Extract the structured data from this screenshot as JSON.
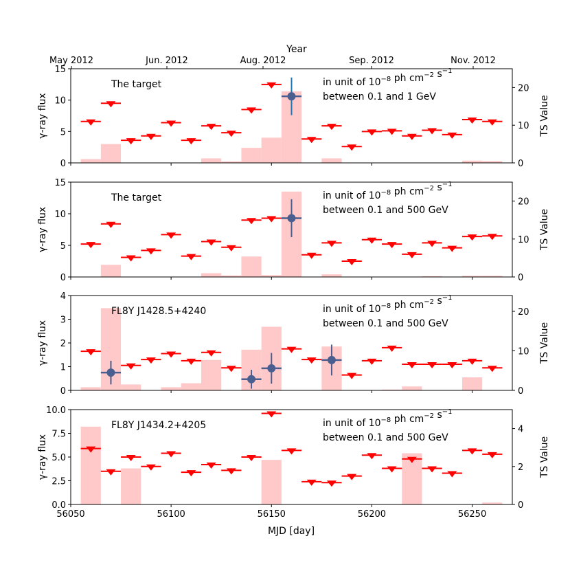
{
  "figure": {
    "top_axis_title": "Year",
    "top_axis_months": [
      "May 2012",
      "Jun. 2012",
      "Aug. 2012",
      "Sep. 2012",
      "Nov. 2012"
    ],
    "xlabel": "MJD [day]"
  },
  "chart_data": [
    {
      "type": "scatter",
      "panel": 1,
      "label": "The target",
      "unit_line1": "in unit of 10−8 ph cm−2 s−1",
      "unit_base": "in unit of 10",
      "unit_exp1": "−8",
      "unit_mid": " ph cm",
      "unit_exp2": "−2",
      "unit_mid2": " s",
      "unit_exp3": "−1",
      "energy_range": "between 0.1 and 1 GeV",
      "ylabel": "γ-ray flux",
      "y2label": "TS Value",
      "xlim": [
        56050,
        56270
      ],
      "ylim": [
        0,
        15
      ],
      "y2lim": [
        0,
        25
      ],
      "yticks": [
        "0",
        "5",
        "10",
        "15"
      ],
      "y2ticks": [
        "0",
        "10",
        "20"
      ],
      "bin_centers": [
        56060,
        56070,
        56080,
        56090,
        56100,
        56110,
        56120,
        56130,
        56140,
        56150,
        56160,
        56170,
        56180,
        56190,
        56200,
        56210,
        56220,
        56230,
        56240,
        56250,
        56260
      ],
      "upper_limits": [
        6.6,
        9.5,
        3.6,
        4.3,
        6.4,
        3.6,
        5.9,
        4.8,
        8.5,
        12.5,
        null,
        3.8,
        5.9,
        2.6,
        5.0,
        5.1,
        4.3,
        5.2,
        4.5,
        6.9,
        6.6
      ],
      "detections": [
        {
          "x": 56160,
          "y": 10.6,
          "yerr": 3.0,
          "xerr": 5
        }
      ],
      "ts_values": [
        1.0,
        5.0,
        0,
        0,
        0,
        0,
        1.2,
        0.4,
        4.0,
        6.7,
        19.0,
        0,
        1.2,
        0,
        0,
        0,
        0,
        0,
        0,
        0.6,
        0.5
      ]
    },
    {
      "type": "scatter",
      "panel": 2,
      "label": "The target",
      "unit_line1": "in unit of 10−8 ph cm−2 s−1",
      "unit_base": "in unit of 10",
      "unit_exp1": "−8",
      "unit_mid": " ph cm",
      "unit_exp2": "−2",
      "unit_mid2": " s",
      "unit_exp3": "−1",
      "energy_range": "between 0.1 and 500 GeV",
      "ylabel": "γ-ray flux",
      "y2label": "TS Value",
      "xlim": [
        56050,
        56270
      ],
      "ylim": [
        0,
        15
      ],
      "y2lim": [
        0,
        25
      ],
      "yticks": [
        "0",
        "5",
        "10",
        "15"
      ],
      "y2ticks": [
        "0",
        "10",
        "20"
      ],
      "bin_centers": [
        56060,
        56070,
        56080,
        56090,
        56100,
        56110,
        56120,
        56130,
        56140,
        56150,
        56160,
        56170,
        56180,
        56190,
        56200,
        56210,
        56220,
        56230,
        56240,
        56250,
        56260
      ],
      "upper_limits": [
        5.2,
        8.4,
        3.1,
        4.2,
        6.7,
        3.3,
        5.6,
        4.7,
        9.0,
        9.3,
        null,
        3.5,
        5.4,
        2.5,
        5.9,
        5.2,
        3.6,
        5.4,
        4.6,
        6.4,
        6.5
      ],
      "detections": [
        {
          "x": 56160,
          "y": 9.3,
          "yerr": 3.0,
          "xerr": 5
        }
      ],
      "ts_values": [
        0,
        3.2,
        0,
        0,
        0,
        0,
        1.0,
        0.4,
        5.4,
        0.5,
        22.5,
        0,
        0.7,
        0,
        0,
        0,
        0,
        0.2,
        0,
        0.3,
        0.3
      ]
    },
    {
      "type": "scatter",
      "panel": 3,
      "label": "FL8Y J1428.5+4240",
      "unit_line1": "in unit of 10−8 ph cm−2 s−1",
      "unit_base": "in unit of 10",
      "unit_exp1": "−8",
      "unit_mid": " ph cm",
      "unit_exp2": "−2",
      "unit_mid2": " s",
      "unit_exp3": "−1",
      "energy_range": "between 0.1 and 500 GeV",
      "ylabel": "γ-ray flux",
      "y2label": "TS Value",
      "xlim": [
        56050,
        56270
      ],
      "ylim": [
        0,
        4
      ],
      "y2lim": [
        0,
        24
      ],
      "yticks": [
        "0",
        "1",
        "2",
        "3",
        "4"
      ],
      "y2ticks": [
        "0",
        "10",
        "20"
      ],
      "bin_centers": [
        56060,
        56070,
        56080,
        56090,
        56100,
        56110,
        56120,
        56130,
        56140,
        56150,
        56160,
        56170,
        56180,
        56190,
        56200,
        56210,
        56220,
        56230,
        56240,
        56250,
        56260
      ],
      "upper_limits": [
        1.65,
        null,
        1.05,
        1.3,
        1.55,
        1.25,
        1.6,
        0.95,
        null,
        null,
        1.75,
        1.3,
        null,
        0.65,
        1.25,
        1.8,
        1.1,
        1.1,
        1.1,
        1.25,
        0.95
      ],
      "detections": [
        {
          "x": 56070,
          "y": 0.75,
          "yerr": 0.5,
          "xerr": 5
        },
        {
          "x": 56140,
          "y": 0.47,
          "yerr": 0.4,
          "xerr": 5
        },
        {
          "x": 56150,
          "y": 0.93,
          "yerr": 0.65,
          "xerr": 5
        },
        {
          "x": 56180,
          "y": 1.28,
          "yerr": 0.65,
          "xerr": 5
        }
      ],
      "ts_values": [
        0.8,
        20.8,
        1.5,
        0,
        0.8,
        1.8,
        7.7,
        0,
        10.3,
        16.1,
        0,
        0,
        11.1,
        0,
        0,
        0.2,
        1.0,
        0,
        0,
        3.3,
        0
      ]
    },
    {
      "type": "scatter",
      "panel": 4,
      "label": "FL8Y J1434.2+4205",
      "unit_line1": "in unit of 10−8 ph cm−2 s−1",
      "unit_base": "in unit of 10",
      "unit_exp1": "−8",
      "unit_mid": " ph cm",
      "unit_exp2": "−2",
      "unit_mid2": " s",
      "unit_exp3": "−1",
      "energy_range": "between 0.1 and 500 GeV",
      "ylabel": "γ-ray flux",
      "y2label": "TS Value",
      "xlim": [
        56050,
        56270
      ],
      "ylim": [
        0,
        10
      ],
      "y2lim": [
        0,
        5
      ],
      "yticks": [
        "0.0",
        "2.5",
        "5.0",
        "7.5",
        "10.0"
      ],
      "y2ticks": [
        "0",
        "2",
        "4"
      ],
      "xticks": [
        "56050",
        "56100",
        "56150",
        "56200",
        "56250"
      ],
      "bin_centers": [
        56060,
        56070,
        56080,
        56090,
        56100,
        56110,
        56120,
        56130,
        56140,
        56150,
        56160,
        56170,
        56180,
        56190,
        56200,
        56210,
        56220,
        56230,
        56240,
        56250,
        56260
      ],
      "upper_limits": [
        5.9,
        3.5,
        5.0,
        4.0,
        5.4,
        3.4,
        4.2,
        3.6,
        5.0,
        9.6,
        5.7,
        2.4,
        2.3,
        3.0,
        5.2,
        3.8,
        4.8,
        3.8,
        3.3,
        5.7,
        5.3
      ],
      "detections": [],
      "ts_values": [
        4.1,
        0,
        1.9,
        0,
        0,
        0,
        0,
        0,
        0,
        2.35,
        0,
        0,
        0,
        0,
        0,
        0,
        2.7,
        0,
        0,
        0,
        0.1
      ]
    }
  ]
}
